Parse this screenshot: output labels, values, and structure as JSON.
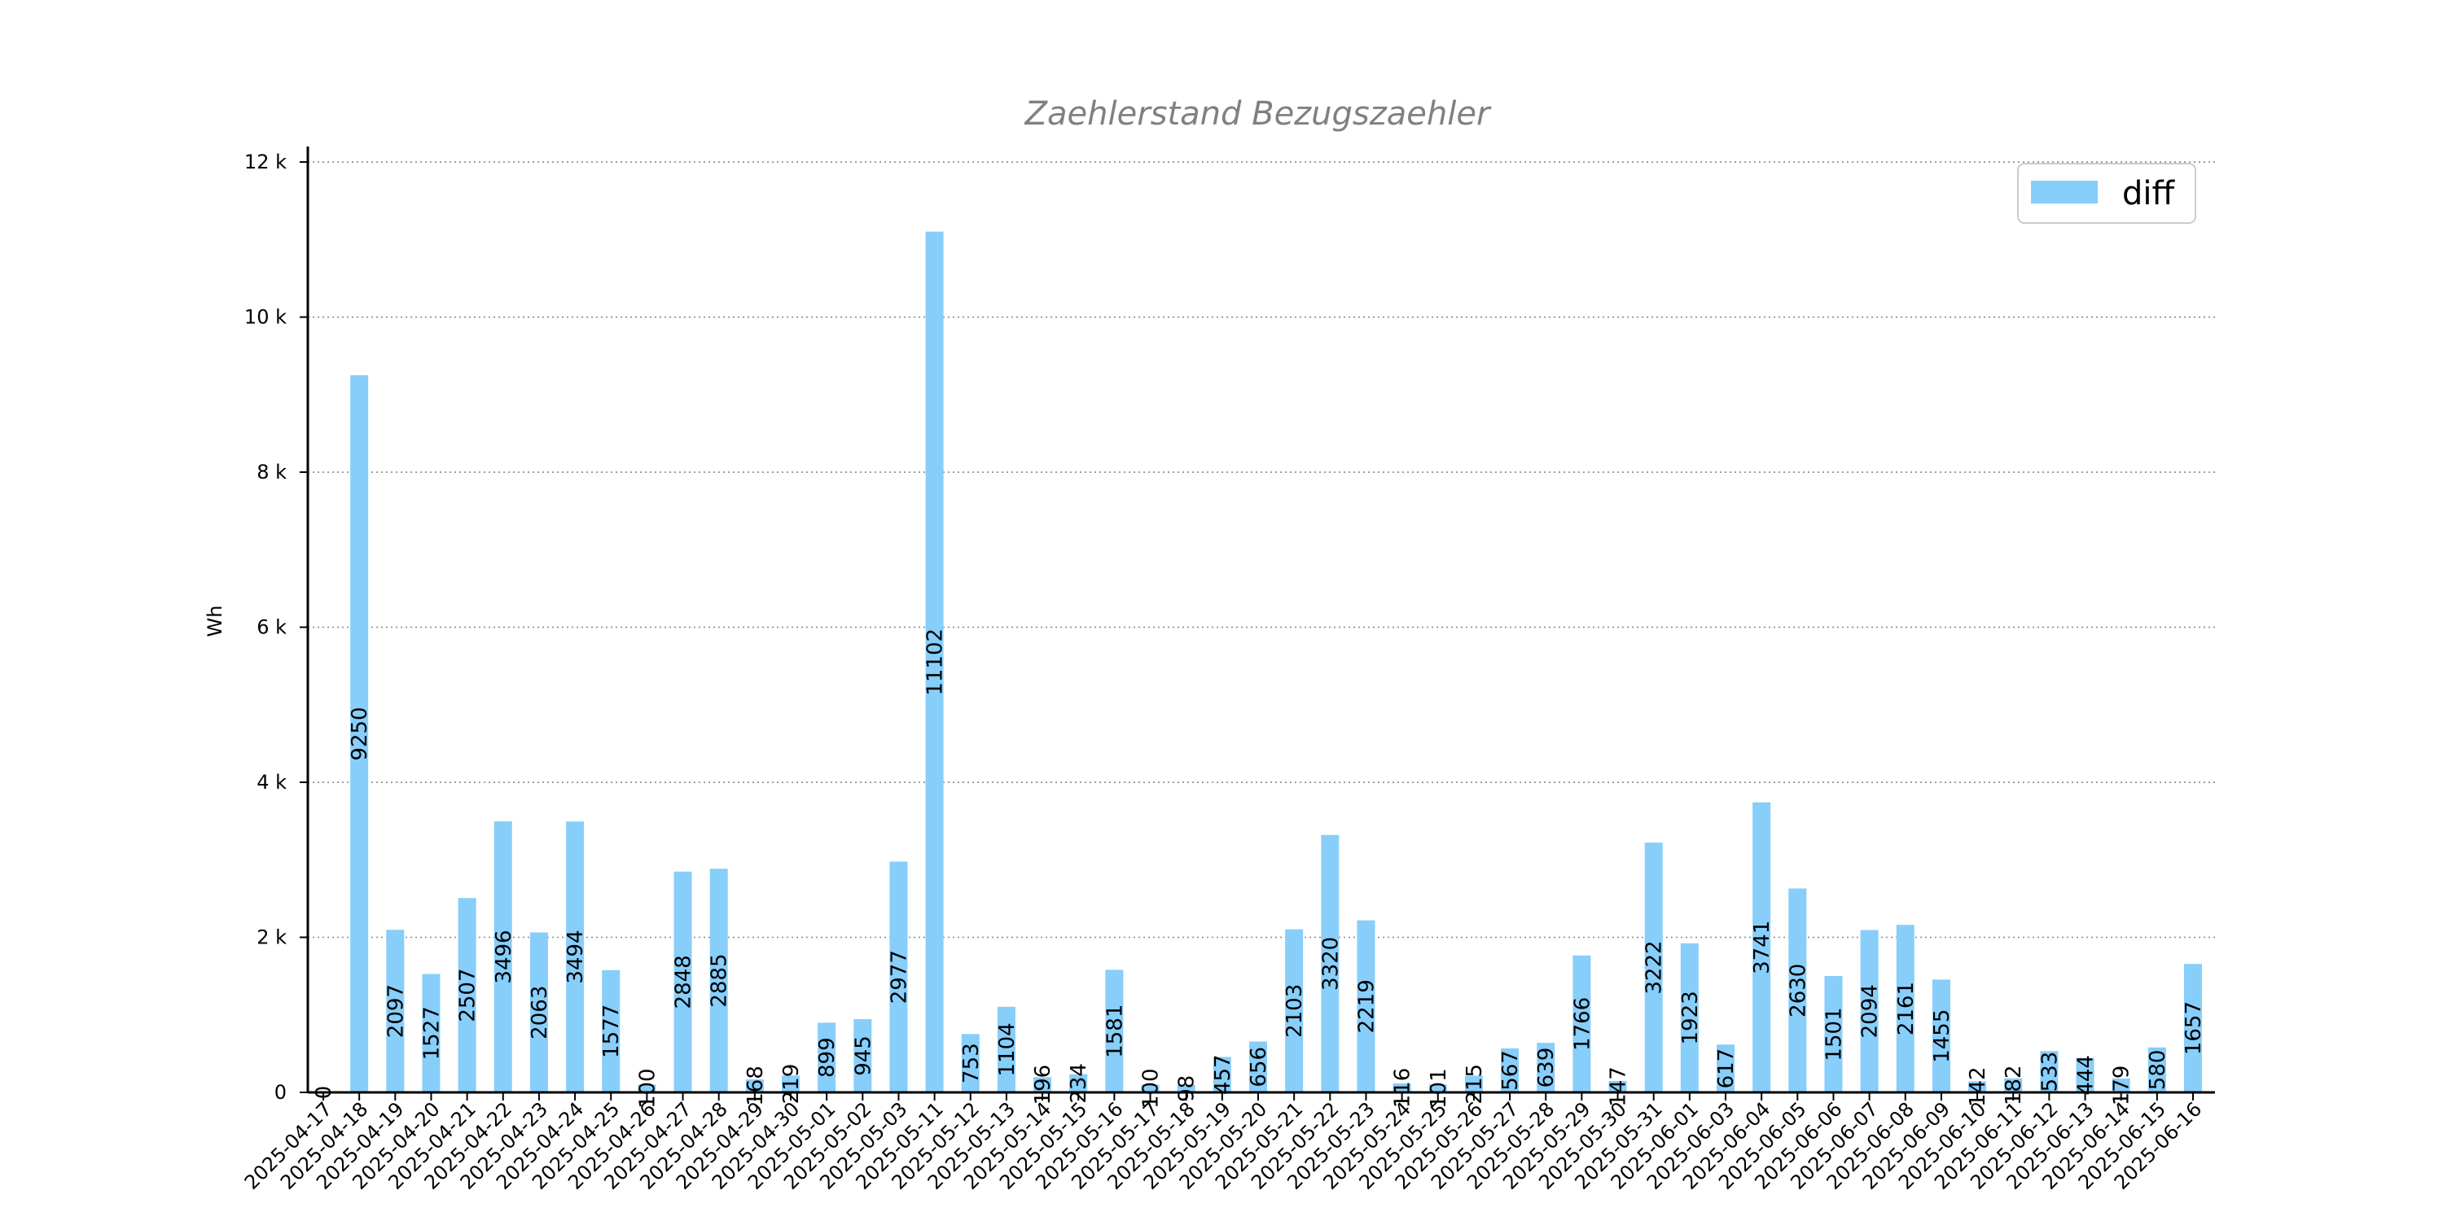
{
  "chart_data": {
    "type": "bar",
    "title": "Zaehlerstand Bezugszaehler",
    "xlabel": "",
    "ylabel": "Wh",
    "ylim": [
      0,
      12200
    ],
    "yticks": [
      0,
      2000,
      4000,
      6000,
      8000,
      10000,
      12000
    ],
    "ytick_labels": [
      "0",
      "2 k",
      "4 k",
      "6 k",
      "8 k",
      "10 k",
      "12 k"
    ],
    "grid": "horizontal-dotted",
    "legend_position": "top-right",
    "categories": [
      "2025-04-17",
      "2025-04-18",
      "2025-04-19",
      "2025-04-20",
      "2025-04-21",
      "2025-04-22",
      "2025-04-23",
      "2025-04-24",
      "2025-04-25",
      "2025-04-26",
      "2025-04-27",
      "2025-04-28",
      "2025-04-29",
      "2025-04-30",
      "2025-05-01",
      "2025-05-02",
      "2025-05-03",
      "2025-05-11",
      "2025-05-12",
      "2025-05-13",
      "2025-05-14",
      "2025-05-15",
      "2025-05-16",
      "2025-05-17",
      "2025-05-18",
      "2025-05-19",
      "2025-05-20",
      "2025-05-21",
      "2025-05-22",
      "2025-05-23",
      "2025-05-24",
      "2025-05-25",
      "2025-05-26",
      "2025-05-27",
      "2025-05-28",
      "2025-05-29",
      "2025-05-30",
      "2025-05-31",
      "2025-06-01",
      "2025-06-03",
      "2025-06-04",
      "2025-06-05",
      "2025-06-06",
      "2025-06-07",
      "2025-06-08",
      "2025-06-09",
      "2025-06-10",
      "2025-06-11",
      "2025-06-12",
      "2025-06-13",
      "2025-06-14",
      "2025-06-15",
      "2025-06-16"
    ],
    "series": [
      {
        "name": "diff",
        "color": "#87cefa",
        "values": [
          0,
          9250,
          2097,
          1527,
          2507,
          3496,
          2063,
          3494,
          1577,
          100,
          2848,
          2885,
          168,
          219,
          899,
          945,
          2977,
          11102,
          753,
          1104,
          196,
          234,
          1581,
          100,
          98,
          457,
          656,
          2103,
          3320,
          2219,
          116,
          101,
          215,
          567,
          639,
          1766,
          147,
          3222,
          1923,
          617,
          3741,
          2630,
          1501,
          2094,
          2161,
          1455,
          142,
          182,
          533,
          444,
          179,
          580,
          1657
        ]
      }
    ]
  }
}
